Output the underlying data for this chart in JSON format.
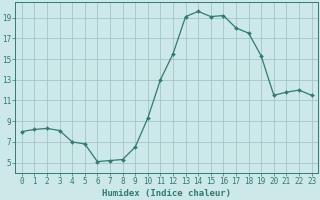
{
  "x": [
    0,
    1,
    2,
    3,
    4,
    5,
    6,
    7,
    8,
    9,
    10,
    11,
    12,
    13,
    14,
    15,
    16,
    17,
    18,
    19,
    20,
    21,
    22,
    23
  ],
  "y": [
    8.0,
    8.2,
    8.3,
    8.1,
    7.0,
    6.8,
    5.1,
    5.2,
    5.3,
    6.5,
    9.3,
    13.0,
    15.5,
    19.1,
    19.6,
    19.1,
    19.2,
    18.0,
    17.5,
    15.3,
    11.5,
    11.8,
    12.0,
    11.5
  ],
  "line_color": "#2e7d6e",
  "marker": "D",
  "marker_size": 2,
  "bg_color": "#cce8e8",
  "grid_color": "#9bbfbf",
  "xlabel": "Humidex (Indice chaleur)",
  "ylim": [
    4.0,
    20.5
  ],
  "xlim": [
    -0.5,
    23.5
  ],
  "yticks": [
    5,
    7,
    9,
    11,
    13,
    15,
    17,
    19
  ],
  "xticks": [
    0,
    1,
    2,
    3,
    4,
    5,
    6,
    7,
    8,
    9,
    10,
    11,
    12,
    13,
    14,
    15,
    16,
    17,
    18,
    19,
    20,
    21,
    22,
    23
  ],
  "font_color": "#2e7d6e",
  "label_fontsize": 6.5,
  "tick_fontsize": 5.5
}
